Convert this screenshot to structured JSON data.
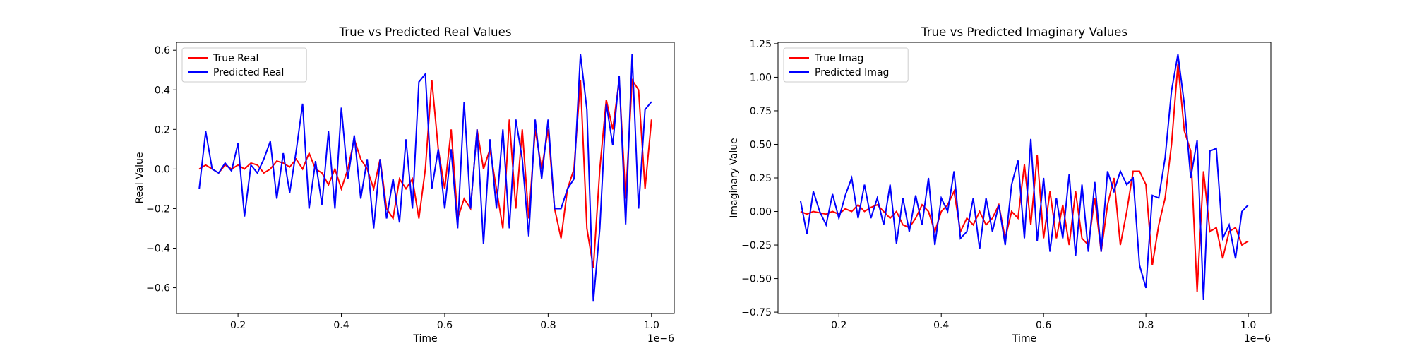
{
  "chart_data": [
    {
      "type": "line",
      "title": "True vs Predicted Real Values",
      "xlabel": "Time",
      "ylabel": "Real Value",
      "x_offset_label": "1e−6",
      "legend": "upper left",
      "xlim": [
        0.081,
        1.044
      ],
      "ylim": [
        -0.73,
        0.64
      ],
      "xticks": [
        0.2,
        0.4,
        0.6,
        0.8,
        {
          "value": 1,
          "label": "1.0"
        }
      ],
      "yticks": [
        {
          "value": -0.6,
          "label": "−0.6"
        },
        {
          "value": -0.4,
          "label": "−0.4"
        },
        {
          "value": -0.2,
          "label": "−0.2"
        },
        {
          "value": 0,
          "label": "0.0"
        },
        0.2,
        0.4,
        0.6
      ],
      "x": [
        0.125,
        0.1375,
        0.15,
        0.1625,
        0.175,
        0.1875,
        0.2,
        0.2125,
        0.225,
        0.2375,
        0.25,
        0.2625,
        0.275,
        0.2875,
        0.3,
        0.3125,
        0.325,
        0.3375,
        0.35,
        0.3625,
        0.375,
        0.3875,
        0.4,
        0.4125,
        0.425,
        0.4375,
        0.45,
        0.4625,
        0.475,
        0.4875,
        0.5,
        0.5125,
        0.525,
        0.5375,
        0.55,
        0.5625,
        0.575,
        0.5875,
        0.6,
        0.6125,
        0.625,
        0.6375,
        0.65,
        0.6625,
        0.675,
        0.6875,
        0.7,
        0.7125,
        0.725,
        0.7375,
        0.75,
        0.7625,
        0.775,
        0.7875,
        0.8,
        0.8125,
        0.825,
        0.8375,
        0.85,
        0.8625,
        0.875,
        0.8875,
        0.9,
        0.9125,
        0.925,
        0.9375,
        0.95,
        0.9625,
        0.975,
        0.9875,
        1.0
      ],
      "series": [
        {
          "name": "True Real",
          "color": "#ff0000",
          "values": [
            0,
            0.02,
            0,
            -0.02,
            0.02,
            0,
            0.02,
            0,
            0.03,
            0.02,
            -0.02,
            0,
            0.04,
            0.03,
            0.01,
            0.05,
            0,
            0.08,
            0,
            -0.02,
            -0.08,
            0,
            -0.1,
            0,
            0.15,
            0.05,
            0,
            -0.1,
            0.05,
            -0.2,
            -0.25,
            -0.05,
            -0.1,
            -0.05,
            -0.25,
            0,
            0.45,
            0.1,
            -0.1,
            0.2,
            -0.25,
            -0.15,
            -0.2,
            0.2,
            0,
            0.1,
            -0.1,
            -0.3,
            0.25,
            -0.2,
            0.2,
            -0.25,
            0.2,
            0,
            0.2,
            -0.2,
            -0.35,
            -0.1,
            0,
            0.45,
            -0.3,
            -0.5,
            0,
            0.35,
            0.2,
            0.45,
            -0.15,
            0.45,
            0.4,
            -0.1,
            0.25
          ]
        },
        {
          "name": "Predicted Real",
          "color": "#0000ff",
          "values": [
            -0.1,
            0.19,
            0,
            -0.02,
            0.03,
            -0.01,
            0.13,
            -0.24,
            0.02,
            -0.02,
            0.05,
            0.14,
            -0.15,
            0.08,
            -0.12,
            0.09,
            0.33,
            -0.2,
            0.04,
            -0.18,
            0.19,
            -0.2,
            0.31,
            -0.05,
            0.17,
            -0.15,
            0.05,
            -0.3,
            0.05,
            -0.25,
            -0.05,
            -0.27,
            0.15,
            -0.2,
            0.44,
            0.48,
            -0.1,
            0.1,
            -0.2,
            0.1,
            -0.3,
            0.34,
            -0.2,
            0.2,
            -0.38,
            0.15,
            -0.2,
            0.2,
            -0.3,
            0.25,
            0.05,
            -0.34,
            0.25,
            -0.05,
            0.25,
            -0.2,
            -0.2,
            -0.1,
            -0.05,
            0.58,
            0.3,
            -0.67,
            -0.3,
            0.33,
            0.12,
            0.47,
            -0.28,
            0.58,
            -0.2,
            0.3,
            0.34
          ]
        }
      ]
    },
    {
      "type": "line",
      "title": "True vs Predicted Imaginary Values",
      "xlabel": "Time",
      "ylabel": "Imaginary Value",
      "x_offset_label": "1e−6",
      "legend": "upper left",
      "xlim": [
        0.081,
        1.044
      ],
      "ylim": [
        -0.76,
        1.26
      ],
      "xticks": [
        0.2,
        0.4,
        0.6,
        0.8,
        {
          "value": 1,
          "label": "1.0"
        }
      ],
      "yticks": [
        {
          "value": -0.75,
          "label": "−0.75"
        },
        {
          "value": -0.5,
          "label": "−0.50"
        },
        {
          "value": -0.25,
          "label": "−0.25"
        },
        {
          "value": 0,
          "label": "0.00"
        },
        0.25,
        {
          "value": 0.5,
          "label": "0.50"
        },
        0.75,
        {
          "value": 1,
          "label": "1.00"
        },
        1.25
      ],
      "x": [
        0.125,
        0.1375,
        0.15,
        0.1625,
        0.175,
        0.1875,
        0.2,
        0.2125,
        0.225,
        0.2375,
        0.25,
        0.2625,
        0.275,
        0.2875,
        0.3,
        0.3125,
        0.325,
        0.3375,
        0.35,
        0.3625,
        0.375,
        0.3875,
        0.4,
        0.4125,
        0.425,
        0.4375,
        0.45,
        0.4625,
        0.475,
        0.4875,
        0.5,
        0.5125,
        0.525,
        0.5375,
        0.55,
        0.5625,
        0.575,
        0.5875,
        0.6,
        0.6125,
        0.625,
        0.6375,
        0.65,
        0.6625,
        0.675,
        0.6875,
        0.7,
        0.7125,
        0.725,
        0.7375,
        0.75,
        0.7625,
        0.775,
        0.7875,
        0.8,
        0.8125,
        0.825,
        0.8375,
        0.85,
        0.8625,
        0.875,
        0.8875,
        0.9,
        0.9125,
        0.925,
        0.9375,
        0.95,
        0.9625,
        0.975,
        0.9875,
        1.0
      ],
      "series": [
        {
          "name": "True Imag",
          "color": "#ff0000",
          "values": [
            0,
            -0.02,
            0,
            -0.01,
            -0.02,
            0,
            -0.02,
            0.02,
            0,
            0.05,
            0,
            0.03,
            0.05,
            0,
            -0.05,
            0,
            -0.1,
            -0.12,
            -0.05,
            0.05,
            0,
            -0.15,
            0,
            0.05,
            0.15,
            -0.15,
            -0.05,
            -0.1,
            0,
            -0.1,
            -0.05,
            0.05,
            -0.2,
            0,
            -0.05,
            0.35,
            -0.1,
            0.42,
            -0.2,
            0.15,
            -0.2,
            0.05,
            -0.25,
            0.15,
            -0.2,
            -0.25,
            0.1,
            -0.3,
            0.05,
            0.25,
            -0.25,
            0,
            0.3,
            0.3,
            0.2,
            -0.4,
            -0.1,
            0.1,
            0.5,
            1.1,
            0.6,
            0.45,
            -0.6,
            0.3,
            -0.15,
            -0.12,
            -0.35,
            -0.15,
            -0.12,
            -0.25,
            -0.22
          ]
        },
        {
          "name": "Predicted Imag",
          "color": "#0000ff",
          "values": [
            0.08,
            -0.17,
            0.15,
            0,
            -0.1,
            0.13,
            -0.05,
            0.12,
            0.25,
            -0.05,
            0.2,
            -0.05,
            0.1,
            -0.1,
            0.2,
            -0.24,
            0.1,
            -0.15,
            0.12,
            -0.1,
            0.25,
            -0.25,
            0.1,
            0,
            0.3,
            -0.2,
            -0.15,
            0.1,
            -0.28,
            0.1,
            -0.15,
            0.05,
            -0.25,
            0.2,
            0.38,
            -0.2,
            0.54,
            -0.22,
            0.25,
            -0.3,
            0.1,
            -0.2,
            0.28,
            -0.33,
            0.2,
            -0.3,
            0.22,
            -0.3,
            0.3,
            0.15,
            0.3,
            0.2,
            0.25,
            -0.4,
            -0.57,
            0.12,
            0.1,
            0.4,
            0.9,
            1.17,
            0.8,
            0.25,
            0.53,
            -0.66,
            0.45,
            0.47,
            -0.2,
            -0.1,
            -0.35,
            0,
            0.05
          ]
        }
      ]
    }
  ]
}
